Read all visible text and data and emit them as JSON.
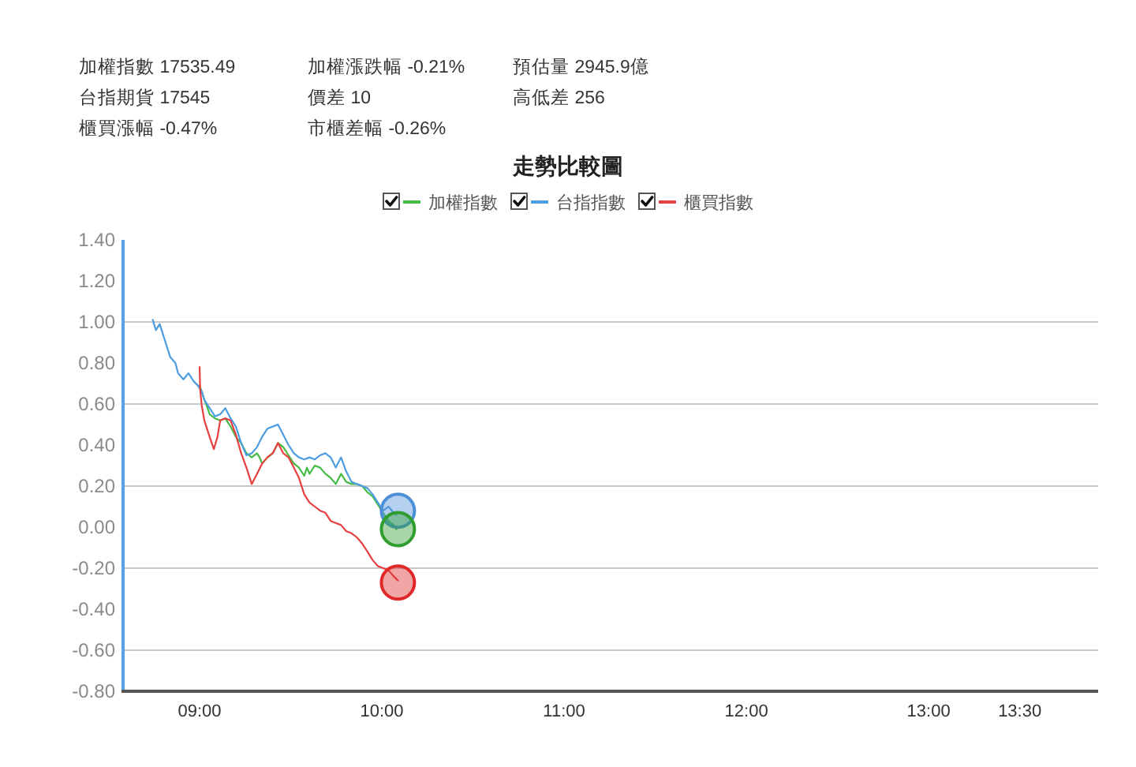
{
  "chart_data": {
    "type": "line",
    "title": "走勢比較圖",
    "annotations": [
      "加權指數 17535.49",
      "加權漲跌幅 -0.21%",
      "預估量 2945.9億",
      "台指期貨 17545",
      "價差 10",
      "高低差 256",
      "櫃買漲幅 -0.47%",
      "市櫃差幅 -0.26%"
    ],
    "series": [
      {
        "name": "加權指數",
        "color": "#44bb44",
        "x": [
          9.0,
          9.012,
          9.026,
          9.04,
          9.055,
          9.084,
          9.113,
          9.141,
          9.17,
          9.199,
          9.228,
          9.257,
          9.286,
          9.315,
          9.329,
          9.343,
          9.372,
          9.401,
          9.43,
          9.459,
          9.488,
          9.517,
          9.545,
          9.574,
          9.589,
          9.603,
          9.632,
          9.661,
          9.69,
          9.719,
          9.747,
          9.776,
          9.805,
          9.834,
          9.863,
          9.892,
          9.921,
          9.949,
          9.978,
          10.007,
          10.036,
          10.065,
          10.079
        ],
        "values": [
          0.69,
          0.66,
          0.62,
          0.59,
          0.55,
          0.53,
          0.52,
          0.53,
          0.49,
          0.44,
          0.41,
          0.36,
          0.34,
          0.36,
          0.34,
          0.31,
          0.34,
          0.36,
          0.41,
          0.39,
          0.35,
          0.31,
          0.29,
          0.25,
          0.29,
          0.26,
          0.3,
          0.29,
          0.26,
          0.24,
          0.21,
          0.26,
          0.22,
          0.21,
          0.21,
          0.2,
          0.17,
          0.15,
          0.11,
          0.07,
          0.03,
          0.01,
          -0.01
        ]
      },
      {
        "name": "台指指數",
        "color": "#4d9de0",
        "x": [
          8.743,
          8.76,
          8.781,
          8.824,
          8.838,
          8.867,
          8.882,
          8.911,
          8.939,
          8.968,
          8.991,
          9.012,
          9.026,
          9.055,
          9.084,
          9.113,
          9.141,
          9.17,
          9.199,
          9.228,
          9.257,
          9.286,
          9.315,
          9.343,
          9.372,
          9.401,
          9.43,
          9.459,
          9.488,
          9.517,
          9.545,
          9.574,
          9.603,
          9.632,
          9.661,
          9.69,
          9.719,
          9.747,
          9.776,
          9.805,
          9.834,
          9.863,
          9.892,
          9.921,
          9.949,
          9.978,
          10.007,
          10.036,
          10.065,
          10.079
        ],
        "values": [
          1.01,
          0.96,
          0.99,
          0.87,
          0.83,
          0.8,
          0.75,
          0.72,
          0.75,
          0.71,
          0.69,
          0.66,
          0.62,
          0.58,
          0.54,
          0.55,
          0.58,
          0.53,
          0.49,
          0.41,
          0.35,
          0.36,
          0.39,
          0.44,
          0.48,
          0.49,
          0.5,
          0.45,
          0.4,
          0.36,
          0.34,
          0.33,
          0.34,
          0.33,
          0.35,
          0.36,
          0.34,
          0.29,
          0.34,
          0.27,
          0.22,
          0.21,
          0.2,
          0.19,
          0.16,
          0.12,
          0.08,
          0.1,
          0.07,
          0.06
        ]
      },
      {
        "name": "櫃買指數",
        "color": "#e84040",
        "x": [
          9.0,
          9.003,
          9.012,
          9.026,
          9.055,
          9.078,
          9.098,
          9.113,
          9.141,
          9.17,
          9.199,
          9.228,
          9.257,
          9.286,
          9.315,
          9.343,
          9.372,
          9.401,
          9.43,
          9.459,
          9.488,
          9.517,
          9.545,
          9.574,
          9.603,
          9.632,
          9.661,
          9.69,
          9.719,
          9.747,
          9.776,
          9.805,
          9.834,
          9.863,
          9.892,
          9.921,
          9.949,
          9.978,
          10.007,
          10.036,
          10.065,
          10.088
        ],
        "values": [
          0.78,
          0.67,
          0.59,
          0.52,
          0.44,
          0.38,
          0.44,
          0.52,
          0.53,
          0.52,
          0.45,
          0.36,
          0.29,
          0.21,
          0.26,
          0.31,
          0.34,
          0.36,
          0.41,
          0.36,
          0.34,
          0.29,
          0.24,
          0.16,
          0.12,
          0.1,
          0.08,
          0.07,
          0.03,
          0.02,
          0.01,
          -0.02,
          -0.03,
          -0.05,
          -0.08,
          -0.12,
          -0.16,
          -0.19,
          -0.2,
          -0.21,
          -0.24,
          -0.26
        ]
      },
      {
        "type": "scatter",
        "x": [
          10.088,
          10.088,
          10.088
        ],
        "values": [
          0.08,
          -0.01,
          -0.27
        ],
        "colors": [
          "#4d8fd6",
          "#2f9e2f",
          "#e02828"
        ]
      }
    ],
    "xlim": [
      8.58,
      13.93
    ],
    "xticks": [
      {
        "value": 9,
        "label": "09:00"
      },
      {
        "value": 10,
        "label": "10:00"
      },
      {
        "value": 11,
        "label": "11:00"
      },
      {
        "value": 12,
        "label": "12:00"
      },
      {
        "value": 13,
        "label": "13:00"
      },
      {
        "value": 13.5,
        "label": "13:30"
      }
    ],
    "ylim": [
      -0.8,
      1.4
    ],
    "yticks": [
      {
        "value": -0.8,
        "label": "-0.80"
      },
      {
        "value": -0.6,
        "label": "-0.60"
      },
      {
        "value": -0.4,
        "label": "-0.40"
      },
      {
        "value": -0.2,
        "label": "-0.20"
      },
      {
        "value": 0,
        "label": "0.00"
      },
      {
        "value": 0.2,
        "label": "0.20"
      },
      {
        "value": 0.4,
        "label": "0.40"
      },
      {
        "value": 0.6,
        "label": "0.60"
      },
      {
        "value": 0.8,
        "label": "0.80"
      },
      {
        "value": 1,
        "label": "1.00"
      },
      {
        "value": 1.2,
        "label": "1.20"
      },
      {
        "value": 1.4,
        "label": "1.40"
      }
    ],
    "grid": "y",
    "legend": "top"
  }
}
